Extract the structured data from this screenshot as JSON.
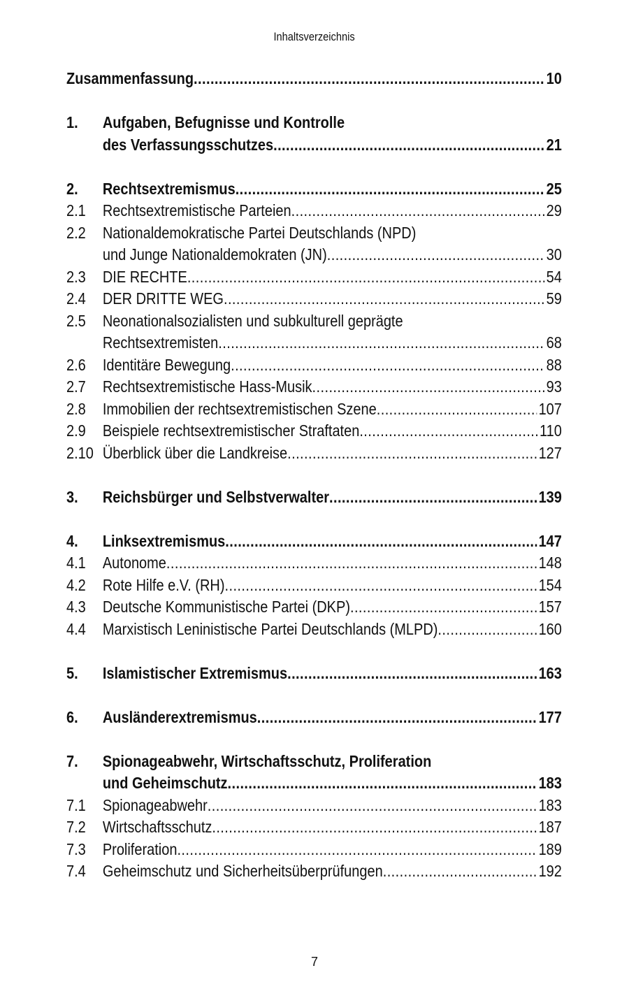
{
  "header": "Inhaltsverzeichnis",
  "footer_page": "7",
  "sections": [
    {
      "entries": [
        {
          "num": "",
          "bold": true,
          "lines": [
            "Zusammenfassung"
          ],
          "page": "10"
        }
      ]
    },
    {
      "entries": [
        {
          "num": "1.",
          "bold": true,
          "lines": [
            "Aufgaben, Befugnisse und Kontrolle",
            "des Verfassungsschutzes"
          ],
          "page": "21"
        }
      ]
    },
    {
      "entries": [
        {
          "num": "2.",
          "bold": true,
          "lines": [
            "Rechtsextremismus"
          ],
          "page": "25"
        },
        {
          "num": "2.1",
          "bold": false,
          "lines": [
            "Rechtsextremistische Parteien "
          ],
          "page": "29"
        },
        {
          "num": "2.2",
          "bold": false,
          "lines": [
            "Nationaldemokratische Partei Deutschlands (NPD)",
            "und Junge Nationaldemokraten (JN) "
          ],
          "page": "30"
        },
        {
          "num": "2.3",
          "bold": false,
          "lines": [
            "DIE RECHTE"
          ],
          "page": "54"
        },
        {
          "num": "2.4",
          "bold": false,
          "lines": [
            "DER DRITTE WEG"
          ],
          "page": "59"
        },
        {
          "num": "2.5",
          "bold": false,
          "lines": [
            "Neonationalsozialisten und subkulturell geprägte",
            "Rechtsextremisten "
          ],
          "page": "68"
        },
        {
          "num": "2.6",
          "bold": false,
          "lines": [
            "Identitäre Bewegung"
          ],
          "page": "88"
        },
        {
          "num": "2.7",
          "bold": false,
          "lines": [
            "Rechtsextremistische Hass-Musik"
          ],
          "page": "93"
        },
        {
          "num": "2.8",
          "bold": false,
          "lines": [
            "Immobilien der rechtsextremistischen Szene "
          ],
          "page": "107"
        },
        {
          "num": "2.9",
          "bold": false,
          "lines": [
            "Beispiele rechtsextremistischer Straftaten"
          ],
          "page": "110"
        },
        {
          "num": "2.10",
          "bold": false,
          "lines": [
            "Überblick über die Landkreise "
          ],
          "page": "127"
        }
      ]
    },
    {
      "entries": [
        {
          "num": "3.",
          "bold": true,
          "lines": [
            "Reichsbürger und Selbstverwalter "
          ],
          "page": "139"
        }
      ]
    },
    {
      "entries": [
        {
          "num": "4.",
          "bold": true,
          "lines": [
            "Linksextremismus "
          ],
          "page": "147"
        },
        {
          "num": "4.1",
          "bold": false,
          "lines": [
            "Autonome "
          ],
          "page": "148"
        },
        {
          "num": "4.2",
          "bold": false,
          "lines": [
            "Rote Hilfe e.V. (RH) "
          ],
          "page": "154"
        },
        {
          "num": "4.3",
          "bold": false,
          "lines": [
            "Deutsche Kommunistische Partei (DKP)"
          ],
          "page": "157"
        },
        {
          "num": "4.4",
          "bold": false,
          "lines": [
            "Marxistisch Leninistische Partei Deutschlands (MLPD) "
          ],
          "page": "160"
        }
      ]
    },
    {
      "entries": [
        {
          "num": "5.",
          "bold": true,
          "lines": [
            "Islamistischer Extremismus "
          ],
          "page": "163"
        }
      ]
    },
    {
      "entries": [
        {
          "num": "6.",
          "bold": true,
          "lines": [
            "Ausländerextremismus"
          ],
          "page": "177"
        }
      ]
    },
    {
      "entries": [
        {
          "num": "7.",
          "bold": true,
          "lines": [
            "Spionageabwehr, Wirtschaftsschutz, Proliferation",
            "und Geheimschutz"
          ],
          "page": "183"
        },
        {
          "num": "7.1",
          "bold": false,
          "lines": [
            "Spionageabwehr"
          ],
          "page": "183"
        },
        {
          "num": "7.2",
          "bold": false,
          "lines": [
            "Wirtschaftsschutz"
          ],
          "page": "187"
        },
        {
          "num": "7.3",
          "bold": false,
          "lines": [
            "Proliferation"
          ],
          "page": "189"
        },
        {
          "num": "7.4",
          "bold": false,
          "lines": [
            "Geheimschutz und Sicherheitsüberprüfungen"
          ],
          "page": "192"
        }
      ]
    }
  ]
}
